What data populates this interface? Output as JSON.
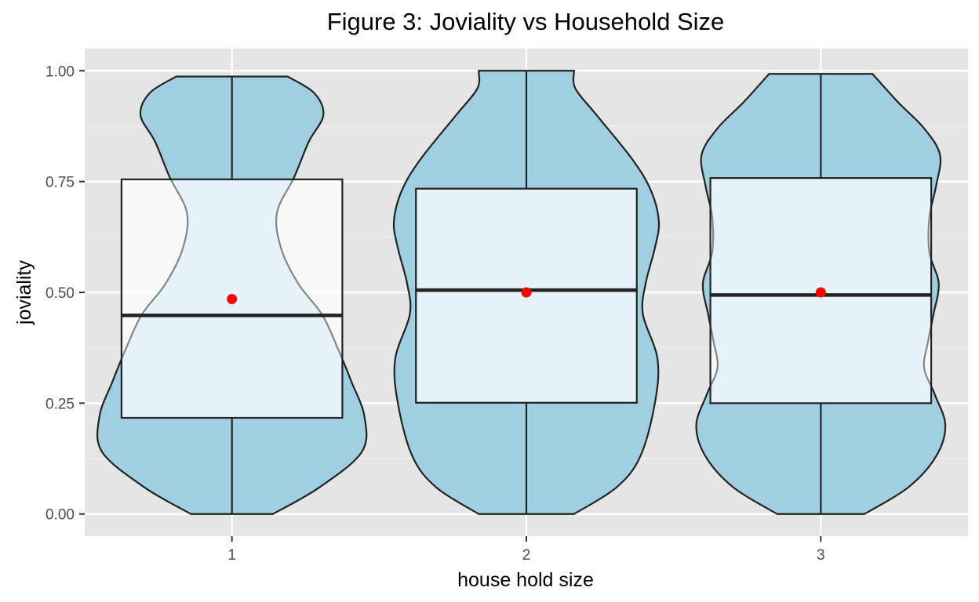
{
  "chart_data": {
    "type": "violin",
    "title": "Figure 3: Joviality vs Household Size",
    "xlabel": "house hold size",
    "ylabel": "joviality",
    "categories": [
      "1",
      "2",
      "3"
    ],
    "ylim": [
      -0.05,
      1.05
    ],
    "yticks": [
      0.0,
      0.25,
      0.5,
      0.75,
      1.0
    ],
    "ytick_labels": [
      "0.00",
      "0.25",
      "0.50",
      "0.75",
      "1.00"
    ],
    "grid": true,
    "colors": {
      "panel": "#e5e5e5",
      "grid_major": "#ffffff",
      "grid_minor": "#f2f2f2",
      "violin_fill": "#9fcfe0",
      "box_fill": "#ffffff",
      "outline": "#222222",
      "mean_point": "#ff0000",
      "tick_text": "#4d4d4d"
    },
    "series": [
      {
        "category": "1",
        "box": {
          "min": 0.0,
          "q1": 0.217,
          "median": 0.448,
          "q3": 0.755,
          "max": 0.987
        },
        "mean": 0.485,
        "density": [
          [
            0.0,
            0.31
          ],
          [
            0.06,
            0.66
          ],
          [
            0.14,
            0.98
          ],
          [
            0.22,
            1.0
          ],
          [
            0.3,
            0.9
          ],
          [
            0.38,
            0.79
          ],
          [
            0.45,
            0.68
          ],
          [
            0.52,
            0.5
          ],
          [
            0.6,
            0.37
          ],
          [
            0.68,
            0.34
          ],
          [
            0.76,
            0.47
          ],
          [
            0.84,
            0.58
          ],
          [
            0.9,
            0.69
          ],
          [
            0.95,
            0.62
          ],
          [
            0.987,
            0.42
          ]
        ]
      },
      {
        "category": "2",
        "box": {
          "min": 0.0,
          "q1": 0.251,
          "median": 0.505,
          "q3": 0.734,
          "max": 1.0
        },
        "mean": 0.5,
        "density": [
          [
            0.0,
            0.36
          ],
          [
            0.06,
            0.68
          ],
          [
            0.13,
            0.86
          ],
          [
            0.25,
            0.97
          ],
          [
            0.35,
            0.99
          ],
          [
            0.45,
            0.88
          ],
          [
            0.52,
            0.9
          ],
          [
            0.6,
            0.97
          ],
          [
            0.66,
            1.0
          ],
          [
            0.73,
            0.94
          ],
          [
            0.8,
            0.8
          ],
          [
            0.9,
            0.53
          ],
          [
            0.96,
            0.37
          ],
          [
            1.0,
            0.36
          ]
        ]
      },
      {
        "category": "3",
        "box": {
          "min": 0.0,
          "q1": 0.25,
          "median": 0.494,
          "q3": 0.758,
          "max": 0.993
        },
        "mean": 0.5,
        "density": [
          [
            0.0,
            0.33
          ],
          [
            0.06,
            0.66
          ],
          [
            0.13,
            0.87
          ],
          [
            0.2,
            0.94
          ],
          [
            0.27,
            0.86
          ],
          [
            0.33,
            0.78
          ],
          [
            0.39,
            0.81
          ],
          [
            0.45,
            0.85
          ],
          [
            0.52,
            0.89
          ],
          [
            0.59,
            0.82
          ],
          [
            0.67,
            0.82
          ],
          [
            0.74,
            0.87
          ],
          [
            0.81,
            0.9
          ],
          [
            0.87,
            0.78
          ],
          [
            0.93,
            0.58
          ],
          [
            0.993,
            0.39
          ]
        ]
      }
    ]
  }
}
